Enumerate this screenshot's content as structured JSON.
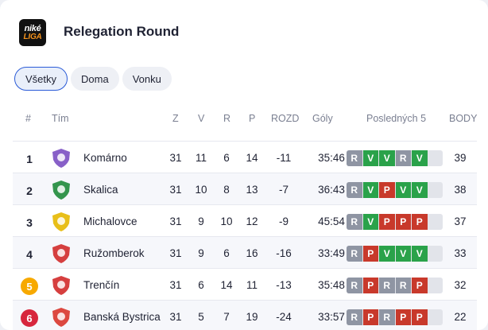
{
  "header": {
    "logo_top": "niké",
    "logo_bottom": "LIGA",
    "title": "Relegation Round"
  },
  "tabs": [
    {
      "label": "Všetky",
      "active": true
    },
    {
      "label": "Doma",
      "active": false
    },
    {
      "label": "Vonku",
      "active": false
    }
  ],
  "columns": {
    "pos": "#",
    "team": "Tím",
    "z": "Z",
    "v": "V",
    "r": "R",
    "p": "P",
    "diff": "ROZD",
    "goals": "Góly",
    "last5": "Posledných 5",
    "points": "BODY"
  },
  "colors": {
    "win": "#2aa24a",
    "draw": "#8f95a3",
    "loss": "#c8392b",
    "badge_orange": "#f7a900",
    "badge_red": "#d7263d"
  },
  "rows": [
    {
      "pos": "1",
      "badge": null,
      "team": "Komárno",
      "z": "31",
      "v": "11",
      "r": "6",
      "p": "14",
      "diff": "-11",
      "goals": "35:46",
      "form": [
        "R",
        "V",
        "V",
        "R",
        "V"
      ],
      "points": "39",
      "crest_color": "#7b4fc2"
    },
    {
      "pos": "2",
      "badge": null,
      "team": "Skalica",
      "z": "31",
      "v": "10",
      "r": "8",
      "p": "13",
      "diff": "-7",
      "goals": "36:43",
      "form": [
        "R",
        "V",
        "P",
        "V",
        "V"
      ],
      "points": "38",
      "crest_color": "#1f8a3a"
    },
    {
      "pos": "3",
      "badge": null,
      "team": "Michalovce",
      "z": "31",
      "v": "9",
      "r": "10",
      "p": "12",
      "diff": "-9",
      "goals": "45:54",
      "form": [
        "R",
        "V",
        "P",
        "P",
        "P"
      ],
      "points": "37",
      "crest_color": "#e6b800"
    },
    {
      "pos": "4",
      "badge": null,
      "team": "Ružomberok",
      "z": "31",
      "v": "9",
      "r": "6",
      "p": "16",
      "diff": "-16",
      "goals": "33:49",
      "form": [
        "R",
        "P",
        "V",
        "V",
        "V"
      ],
      "points": "33",
      "crest_color": "#d12a2a"
    },
    {
      "pos": "5",
      "badge": "orange",
      "team": "Trenčín",
      "z": "31",
      "v": "6",
      "r": "14",
      "p": "11",
      "diff": "-13",
      "goals": "35:48",
      "form": [
        "R",
        "P",
        "R",
        "R",
        "P"
      ],
      "points": "32",
      "crest_color": "#d12a2a"
    },
    {
      "pos": "6",
      "badge": "red",
      "team": "Banská Bystrica",
      "z": "31",
      "v": "5",
      "r": "7",
      "p": "19",
      "diff": "-24",
      "goals": "33:57",
      "form": [
        "R",
        "P",
        "R",
        "P",
        "P"
      ],
      "points": "22",
      "crest_color": "#d9342b"
    }
  ]
}
